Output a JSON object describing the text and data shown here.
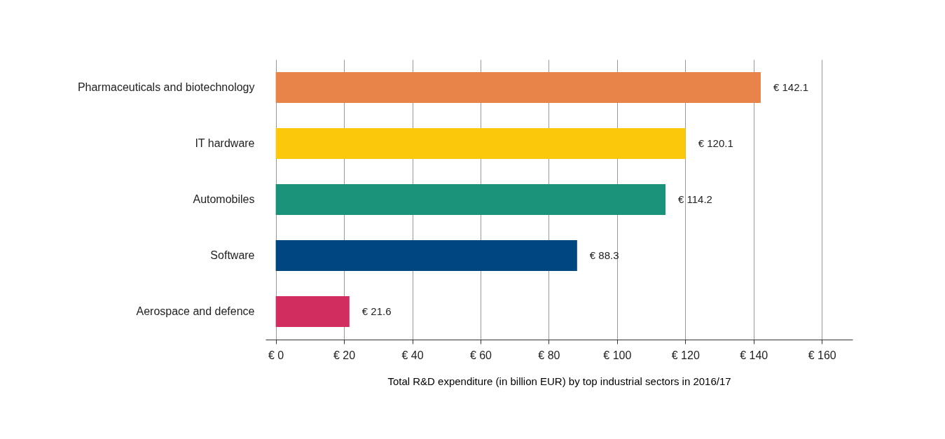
{
  "chart_data": {
    "type": "bar",
    "orientation": "horizontal",
    "xlabel": "Total R&D expenditure (in billion EUR) by top industrial sectors in 2016/17",
    "categories": [
      "Pharmaceuticals and biotechnology",
      "IT hardware",
      "Automobiles",
      "Software",
      "Aerospace and defence"
    ],
    "values": [
      142.1,
      120.1,
      114.2,
      88.3,
      21.6
    ],
    "colors": [
      "#e8834a",
      "#fcc80c",
      "#1a937a",
      "#004680",
      "#d12e5f"
    ],
    "value_labels": [
      "€ 142.1",
      "€ 120.1",
      "€ 114.2",
      "€ 88.3",
      "€ 21.6"
    ],
    "xlim": [
      -3,
      169
    ],
    "xticks": [
      {
        "value": 0,
        "label": "€ 0"
      },
      {
        "value": 20,
        "label": "€ 20"
      },
      {
        "value": 40,
        "label": "€ 40"
      },
      {
        "value": 60,
        "label": "€ 60"
      },
      {
        "value": 80,
        "label": "€ 80"
      },
      {
        "value": 100,
        "label": "€ 100"
      },
      {
        "value": 120,
        "label": "€ 120"
      },
      {
        "value": 140,
        "label": "€ 140"
      },
      {
        "value": 160,
        "label": "€ 160"
      }
    ],
    "grid": "x"
  }
}
